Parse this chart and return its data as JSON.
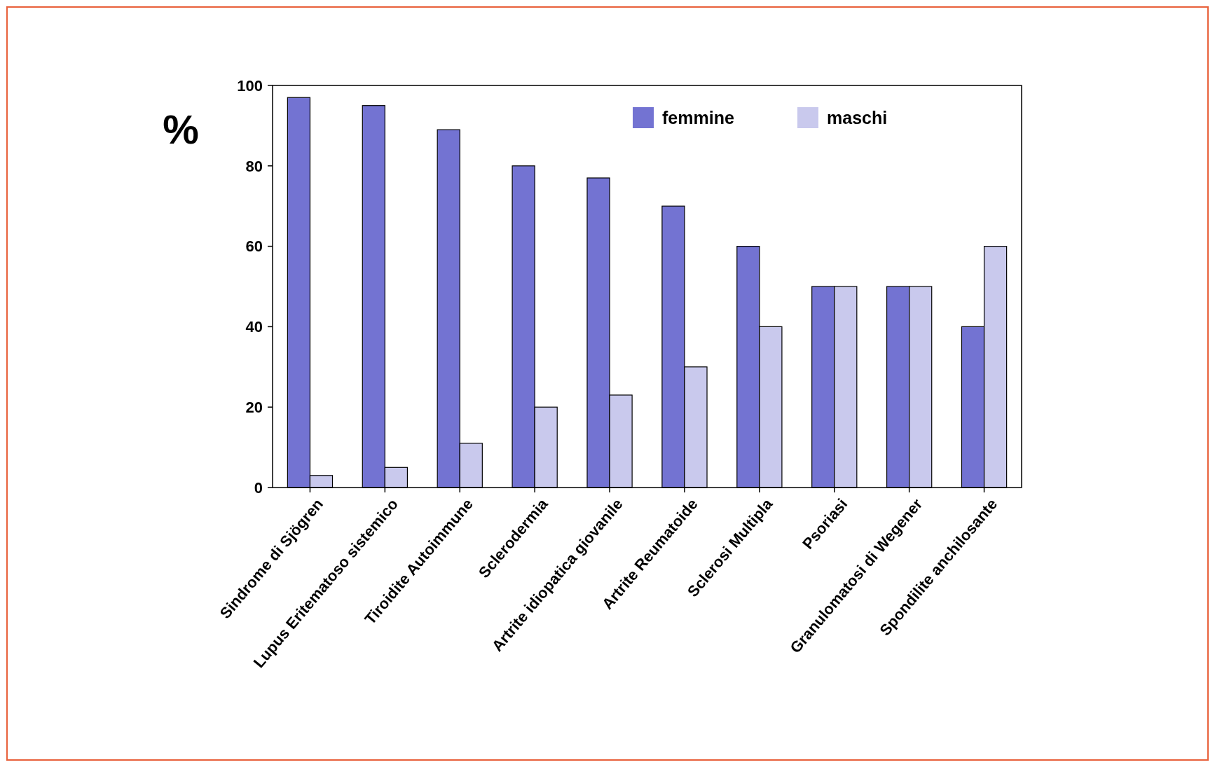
{
  "chart_data": {
    "type": "bar",
    "ylabel": "%",
    "categories": [
      "Sindrome di Sjögren",
      "Lupus Eritematoso sistemico",
      "Tiroidite Autoimmune",
      "Sclerodermia",
      "Artrite idiopatica giovanile",
      "Artrite Reumatoide",
      "Sclerosi Multipla",
      "Psoriasi",
      "Granulomatosi di Wegener",
      "Spondilite anchilosante"
    ],
    "series": [
      {
        "name": "femmine",
        "color": "#7373d2",
        "values": [
          97,
          95,
          89,
          80,
          77,
          70,
          60,
          50,
          50,
          40
        ]
      },
      {
        "name": "maschi",
        "color": "#c9c9ed",
        "values": [
          3,
          5,
          11,
          20,
          23,
          30,
          40,
          50,
          50,
          60
        ]
      }
    ],
    "ylim": [
      0,
      100
    ],
    "yticks": [
      0,
      20,
      40,
      60,
      80,
      100
    ],
    "grid": false,
    "legend": "top right"
  }
}
